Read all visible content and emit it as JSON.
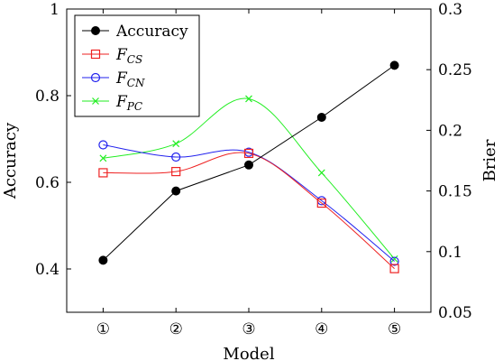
{
  "chart_data": {
    "type": "line",
    "categories": [
      "①",
      "②",
      "③",
      "④",
      "⑤"
    ],
    "xlabel": "Model",
    "y_left": {
      "label": "Accuracy",
      "lim": [
        0.3,
        1.0
      ],
      "ticks": [
        0.4,
        0.6,
        0.8,
        1.0
      ],
      "tick_labels": [
        "0.4",
        "0.6",
        "0.8",
        "1"
      ]
    },
    "y_right": {
      "label": "Brier",
      "lim": [
        0.05,
        0.3
      ],
      "ticks": [
        0.05,
        0.1,
        0.15,
        0.2,
        0.25,
        0.3
      ],
      "tick_labels": [
        "0.05",
        "0.1",
        "0.15",
        "0.2",
        "0.25",
        "0.3"
      ]
    },
    "grid": false,
    "legend_position": "top-left",
    "series": [
      {
        "name": "Accuracy",
        "axis": "left",
        "marker": "filled-circle",
        "color": "#000000",
        "smooth": false,
        "values": [
          0.42,
          0.58,
          0.64,
          0.75,
          0.87
        ]
      },
      {
        "name": "F",
        "subscript": "CS",
        "axis": "right",
        "marker": "square",
        "color": "#ee2222",
        "smooth": true,
        "values": [
          0.165,
          0.166,
          0.181,
          0.14,
          0.086
        ]
      },
      {
        "name": "F",
        "subscript": "CN",
        "axis": "right",
        "marker": "circle",
        "color": "#2222ee",
        "smooth": true,
        "values": [
          0.188,
          0.178,
          0.182,
          0.142,
          0.092
        ]
      },
      {
        "name": "F",
        "subscript": "PC",
        "axis": "right",
        "marker": "x",
        "color": "#22ee22",
        "smooth": true,
        "values": [
          0.177,
          0.189,
          0.226,
          0.165,
          0.094
        ]
      }
    ]
  }
}
